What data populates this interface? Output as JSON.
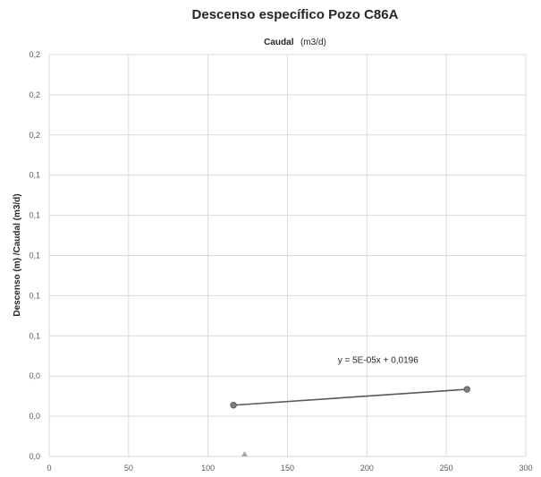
{
  "chart_data": {
    "type": "scatter",
    "title": "Descenso específico Pozo C86A",
    "subtitle_bold": "Caudal",
    "subtitle_unit": "(m3/d)",
    "ylabel": "Descenso (m) /Caudal (m3/d)",
    "xlabel": "",
    "xlim": [
      0,
      300
    ],
    "ylim": [
      0,
      0.2
    ],
    "xticks": [
      0,
      50,
      100,
      150,
      200,
      250,
      300
    ],
    "xtick_labels": [
      "0",
      "50",
      "100",
      "150",
      "200",
      "250",
      "300"
    ],
    "yticks": [
      0,
      0.02,
      0.04,
      0.06,
      0.08,
      0.1,
      0.12,
      0.14,
      0.16,
      0.18,
      0.2
    ],
    "ytick_labels": [
      "0,0",
      "0,0",
      "0,0",
      "0,1",
      "0,1",
      "0,1",
      "0,1",
      "0,1",
      "0,2",
      "0,2",
      "0,2"
    ],
    "grid": true,
    "series": [
      {
        "type": "line",
        "color": "#595959",
        "points": [
          {
            "x": 116,
            "y": 0.0255
          },
          {
            "x": 263,
            "y": 0.0334
          }
        ]
      },
      {
        "type": "marker-triangle",
        "color": "#a6a6a6",
        "points": [
          {
            "x": 123,
            "y": 0.0
          }
        ]
      }
    ],
    "annotations": [
      {
        "text": "y = 5E-05x + 0,0196",
        "x": 207,
        "y": 0.0465
      }
    ]
  }
}
